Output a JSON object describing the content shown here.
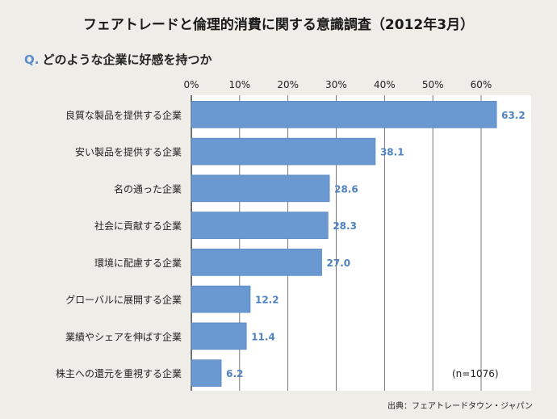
{
  "header": {
    "title": "フェアトレードと倫理的消費に関する意識調査（2012年3月）",
    "question_prefix": "Q.",
    "question_text": "どのような企業に好感を持つか"
  },
  "note": "(n=1076)",
  "source": "出典：フェアトレードタウン・ジャパン",
  "colors": {
    "bar": "#6a98d0",
    "bar_stroke": "#4f7fb8",
    "value_label": "#4f82c0",
    "grid": "#555555",
    "plot_bg": "#ffffff"
  },
  "chart_data": {
    "type": "bar",
    "orientation": "horizontal",
    "categories": [
      "良質な製品を提供する企業",
      "安い製品を提供する企業",
      "名の通った企業",
      "社会に貢献する企業",
      "環境に配慮する企業",
      "グローバルに展開する企業",
      "業績やシェアを伸ばす企業",
      "株主への還元を重視する企業"
    ],
    "values": [
      63.2,
      38.1,
      28.6,
      28.3,
      27.0,
      12.2,
      11.4,
      6.2
    ],
    "value_labels": [
      "63.2",
      "38.1",
      "28.6",
      "28.3",
      "27.0",
      "12.2",
      "11.4",
      "6.2"
    ],
    "xlim": [
      0,
      68
    ],
    "xticks": [
      0,
      10,
      20,
      30,
      40,
      50,
      60
    ],
    "xtick_labels": [
      "0%",
      "10%",
      "20%",
      "30%",
      "40%",
      "50%",
      "60%"
    ],
    "grid": true
  }
}
